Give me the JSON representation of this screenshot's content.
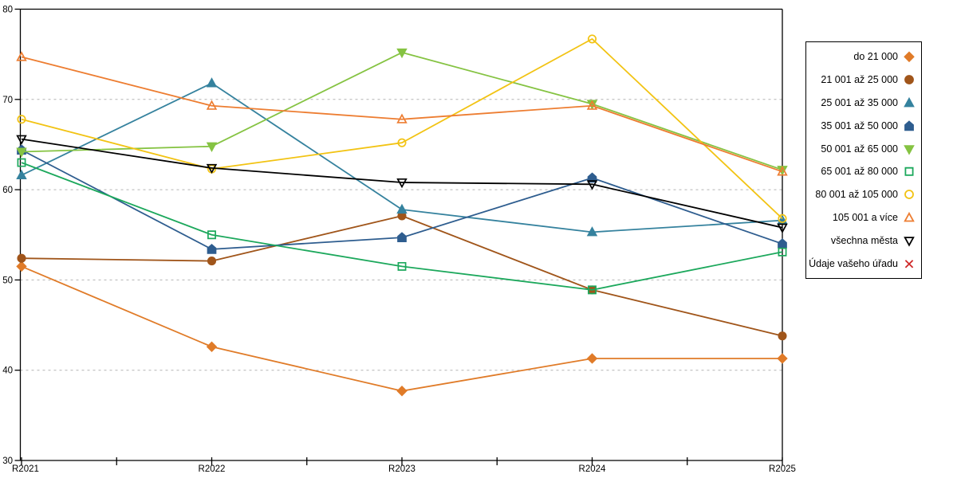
{
  "chart_data": {
    "type": "line",
    "title": "",
    "xlabel": "",
    "ylabel": "",
    "categories": [
      "R2021",
      "R2022",
      "R2023",
      "R2024",
      "R2025"
    ],
    "ylim": [
      30,
      80
    ],
    "yticks": [
      30,
      40,
      50,
      60,
      70,
      80
    ],
    "grid": "horizontal-dashed",
    "gridline_color": "#b3b3b3",
    "axis_color": "#000000",
    "legend_position": "right",
    "series": [
      {
        "name": "do 21 000",
        "color": "#e07b28",
        "marker": "diamond",
        "fill": "filled",
        "values": [
          51.5,
          42.6,
          37.7,
          41.3,
          41.3
        ]
      },
      {
        "name": "21 001 až 25 000",
        "color": "#a0551a",
        "marker": "circle",
        "fill": "filled",
        "values": [
          52.4,
          52.1,
          57.1,
          48.9,
          43.8
        ]
      },
      {
        "name": "25 001 až 35 000",
        "color": "#35829e",
        "marker": "triangle-up",
        "fill": "filled",
        "values": [
          61.6,
          71.8,
          57.8,
          55.3,
          56.6
        ]
      },
      {
        "name": "35 001 až 50 000",
        "color": "#2e5d8f",
        "marker": "pentagon",
        "fill": "filled",
        "values": [
          64.4,
          53.4,
          54.7,
          61.3,
          54.0
        ]
      },
      {
        "name": "50 001 až 65 000",
        "color": "#85c342",
        "marker": "triangle-down",
        "fill": "filled",
        "values": [
          64.2,
          64.8,
          75.2,
          69.5,
          62.2
        ]
      },
      {
        "name": "65 001 až 80 000",
        "color": "#1ca85c",
        "marker": "square",
        "fill": "open",
        "values": [
          63.0,
          55.0,
          51.5,
          48.9,
          53.1
        ]
      },
      {
        "name": "80 001 až 105 000",
        "color": "#f2c313",
        "marker": "circle",
        "fill": "open",
        "values": [
          67.8,
          62.3,
          65.2,
          76.7,
          56.8
        ]
      },
      {
        "name": "105 001 a více",
        "color": "#ed7d31",
        "marker": "triangle-up",
        "fill": "open",
        "values": [
          74.7,
          69.3,
          67.8,
          69.3,
          62.0
        ]
      },
      {
        "name": "všechna města",
        "color": "#000000",
        "marker": "triangle-down",
        "fill": "open",
        "values": [
          65.6,
          62.4,
          60.8,
          60.6,
          55.8
        ]
      },
      {
        "name": "Údaje vašeho úřadu",
        "color": "#cf2929",
        "marker": "x",
        "fill": "open",
        "values": []
      }
    ]
  }
}
